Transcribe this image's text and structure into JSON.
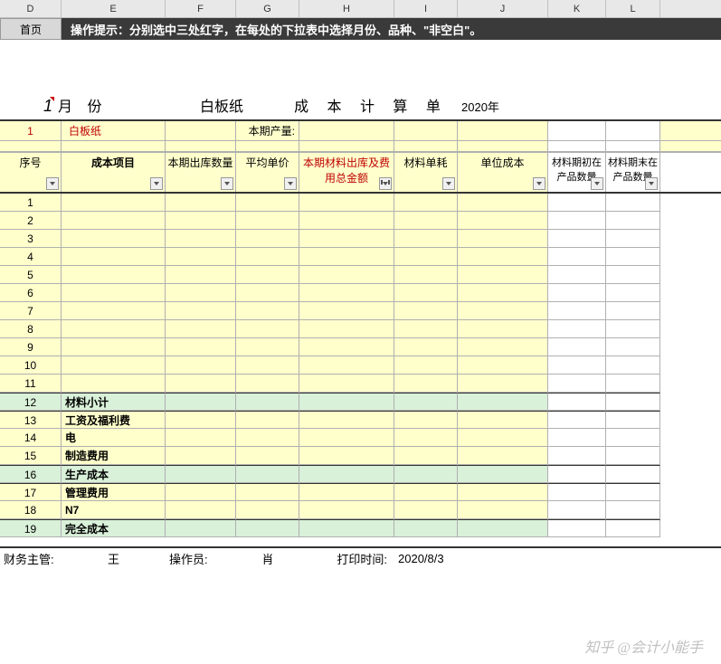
{
  "columns": {
    "D": "D",
    "E": "E",
    "F": "F",
    "G": "G",
    "H": "H",
    "I": "I",
    "J": "J",
    "K": "K",
    "L": "L"
  },
  "toolbar": {
    "home": "首页"
  },
  "hint": "操作提示：分别选中三处红字，在每处的下拉表中选择月份、品种、\"非空白\"。",
  "title": {
    "month_num": "1",
    "month_label": "月 份",
    "product": "白板纸",
    "calc": "成 本 计 算 单",
    "year": "2020年"
  },
  "info": {
    "idx": "1",
    "product": "白板纸",
    "volume_label": "本期产量:"
  },
  "headers": {
    "D": "序号",
    "E": "成本项目",
    "F": "本期出库数量",
    "G": "平均单价",
    "H": "本期材料出库及费用总金额",
    "I": "材料单耗",
    "J": "单位成本",
    "K": "材料期初在产品数量",
    "L": "材料期末在产品数量"
  },
  "rows": [
    {
      "n": "1",
      "label": "",
      "cls": ""
    },
    {
      "n": "2",
      "label": "",
      "cls": ""
    },
    {
      "n": "3",
      "label": "",
      "cls": ""
    },
    {
      "n": "4",
      "label": "",
      "cls": ""
    },
    {
      "n": "5",
      "label": "",
      "cls": ""
    },
    {
      "n": "6",
      "label": "",
      "cls": ""
    },
    {
      "n": "7",
      "label": "",
      "cls": ""
    },
    {
      "n": "8",
      "label": "",
      "cls": ""
    },
    {
      "n": "9",
      "label": "",
      "cls": ""
    },
    {
      "n": "10",
      "label": "",
      "cls": ""
    },
    {
      "n": "11",
      "label": "",
      "cls": ""
    },
    {
      "n": "12",
      "label": "材料小计",
      "cls": "green dblborder"
    },
    {
      "n": "13",
      "label": "工资及福利费",
      "cls": "dblborder"
    },
    {
      "n": "14",
      "label": "电",
      "cls": ""
    },
    {
      "n": "15",
      "label": "制造费用",
      "cls": ""
    },
    {
      "n": "16",
      "label": "生产成本",
      "cls": "green dblborder"
    },
    {
      "n": "17",
      "label": "管理费用",
      "cls": "dblborder"
    },
    {
      "n": "18",
      "label": "N7",
      "cls": ""
    },
    {
      "n": "19",
      "label": "完全成本",
      "cls": "green dblborder"
    }
  ],
  "footer": {
    "mgr_label": "财务主管:",
    "mgr_name": "王",
    "op_label": "操作员:",
    "op_name": "肖",
    "print_label": "打印时间:",
    "print_time": "2020/8/3"
  },
  "watermark": "知乎 @会计小能手",
  "colors": {
    "yellow_bg": "#ffffcc",
    "green_bg": "#d9f0d9",
    "red_text": "#c00000",
    "header_bg": "#e8e8e8",
    "hint_bg": "#3a3a3a",
    "border": "#b0b0b0",
    "heavy_border": "#333333"
  }
}
